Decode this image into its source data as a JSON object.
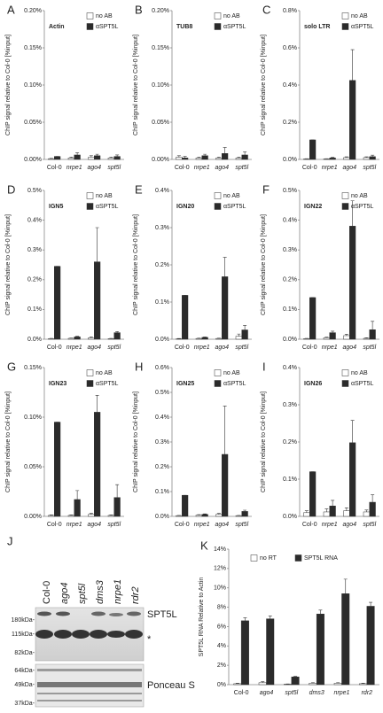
{
  "chart_data": [
    {
      "type": "bar",
      "panel": "A",
      "title": "Actin",
      "y_label": "ChIP signal relative to Col-0 [%input]",
      "categories": [
        "Col-0",
        "nrpe1",
        "ago4",
        "spt5l"
      ],
      "series": [
        {
          "name": "no AB",
          "color": "#ffffff",
          "values": [
            0.001,
            0.002,
            0.003,
            0.002
          ],
          "errors": [
            0.0005,
            0.001,
            0.002,
            0.001
          ]
        },
        {
          "name": "αSPT5L",
          "color": "#2b2b2b",
          "values": [
            0.004,
            0.006,
            0.005,
            0.004
          ],
          "errors": [
            0.0,
            0.003,
            0.002,
            0.002
          ]
        }
      ],
      "ylim": [
        0,
        0.2
      ],
      "yticks": [
        {
          "value": 0,
          "label": "0.00%"
        },
        {
          "value": 0.05,
          "label": "0.05%"
        },
        {
          "value": 0.1,
          "label": "0.10%"
        },
        {
          "value": 0.15,
          "label": "0.15%"
        },
        {
          "value": 0.2,
          "label": "0.20%"
        }
      ],
      "legend": "upper right"
    },
    {
      "type": "bar",
      "panel": "B",
      "title": "TUB8",
      "y_label": "ChIP signal relative to Col-0 [%input]",
      "categories": [
        "Col-0",
        "nrpe1",
        "ago4",
        "spt5l"
      ],
      "series": [
        {
          "name": "no AB",
          "color": "#ffffff",
          "values": [
            0.003,
            0.002,
            0.002,
            0.002
          ],
          "errors": [
            0.002,
            0.001,
            0.001,
            0.001
          ]
        },
        {
          "name": "αSPT5L",
          "color": "#2b2b2b",
          "values": [
            0.002,
            0.005,
            0.008,
            0.006
          ],
          "errors": [
            0.002,
            0.002,
            0.008,
            0.004
          ]
        }
      ],
      "ylim": [
        0,
        0.2
      ],
      "yticks": [
        {
          "value": 0,
          "label": "0.00%"
        },
        {
          "value": 0.05,
          "label": "0.05%"
        },
        {
          "value": 0.1,
          "label": "0.10%"
        },
        {
          "value": 0.15,
          "label": "0.15%"
        },
        {
          "value": 0.2,
          "label": "0.20%"
        }
      ],
      "legend": "upper right"
    },
    {
      "type": "bar",
      "panel": "C",
      "title": "solo LTR",
      "y_label": "ChIP signal relative to Col-0 [%input]",
      "categories": [
        "Col-0",
        "nrpe1",
        "ago4",
        "spt5l"
      ],
      "series": [
        {
          "name": "no AB",
          "color": "#ffffff",
          "values": [
            0.003,
            0.003,
            0.01,
            0.01
          ],
          "errors": [
            0.001,
            0.001,
            0.004,
            0.004
          ]
        },
        {
          "name": "αSPT5L",
          "color": "#2b2b2b",
          "values": [
            0.105,
            0.008,
            0.425,
            0.015
          ],
          "errors": [
            0.0,
            0.003,
            0.165,
            0.008
          ]
        }
      ],
      "ylim": [
        0,
        0.8
      ],
      "yticks": [
        {
          "value": 0,
          "label": "0.0%"
        },
        {
          "value": 0.2,
          "label": "0.2%"
        },
        {
          "value": 0.4,
          "label": "0.4%"
        },
        {
          "value": 0.6,
          "label": "0.6%"
        },
        {
          "value": 0.8,
          "label": "0.8%"
        }
      ],
      "legend": "upper right"
    },
    {
      "type": "bar",
      "panel": "D",
      "title": "IGN5",
      "y_label": "ChIP signal relative to Col-0 [%input]",
      "categories": [
        "Col-0",
        "nrpe1",
        "ago4",
        "spt5l"
      ],
      "series": [
        {
          "name": "no AB",
          "color": "#ffffff",
          "values": [
            0.002,
            0.003,
            0.005,
            0.002
          ],
          "errors": [
            0.001,
            0.001,
            0.003,
            0.001
          ]
        },
        {
          "name": "αSPT5L",
          "color": "#2b2b2b",
          "values": [
            0.245,
            0.008,
            0.26,
            0.022
          ],
          "errors": [
            0.0,
            0.002,
            0.115,
            0.004
          ]
        }
      ],
      "ylim": [
        0,
        0.5
      ],
      "yticks": [
        {
          "value": 0,
          "label": "0.0%"
        },
        {
          "value": 0.1,
          "label": "0.1%"
        },
        {
          "value": 0.2,
          "label": "0.2%"
        },
        {
          "value": 0.3,
          "label": "0.3%"
        },
        {
          "value": 0.4,
          "label": "0.4%"
        },
        {
          "value": 0.5,
          "label": "0.5%"
        }
      ],
      "legend": "upper right"
    },
    {
      "type": "bar",
      "panel": "E",
      "title": "IGN20",
      "y_label": "ChIP signal relative to Col-0 [%input]",
      "categories": [
        "Col-0",
        "nrpe1",
        "ago4",
        "spt5l"
      ],
      "series": [
        {
          "name": "no AB",
          "color": "#ffffff",
          "values": [
            0.001,
            0.002,
            0.002,
            0.008
          ],
          "errors": [
            0.001,
            0.001,
            0.001,
            0.006
          ]
        },
        {
          "name": "αSPT5L",
          "color": "#2b2b2b",
          "values": [
            0.118,
            0.005,
            0.168,
            0.025
          ],
          "errors": [
            0.0,
            0.001,
            0.052,
            0.012
          ]
        }
      ],
      "ylim": [
        0,
        0.4
      ],
      "yticks": [
        {
          "value": 0,
          "label": "0.0%"
        },
        {
          "value": 0.1,
          "label": "0.1%"
        },
        {
          "value": 0.2,
          "label": "0.2%"
        },
        {
          "value": 0.3,
          "label": "0.3%"
        },
        {
          "value": 0.4,
          "label": "0.4%"
        }
      ],
      "legend": "upper right"
    },
    {
      "type": "bar",
      "panel": "F",
      "title": "IGN22",
      "y_label": "ChIP signal relative to Col-0 [%input]",
      "categories": [
        "Col-0",
        "nrpe1",
        "ago4",
        "spt5l"
      ],
      "series": [
        {
          "name": "no AB",
          "color": "#ffffff",
          "values": [
            0.002,
            0.005,
            0.012,
            0.003
          ],
          "errors": [
            0.001,
            0.002,
            0.005,
            0.002
          ]
        },
        {
          "name": "αSPT5L",
          "color": "#2b2b2b",
          "values": [
            0.14,
            0.022,
            0.38,
            0.032
          ],
          "errors": [
            0.0,
            0.005,
            0.085,
            0.028
          ]
        }
      ],
      "ylim": [
        0,
        0.5
      ],
      "yticks": [
        {
          "value": 0,
          "label": "0.0%"
        },
        {
          "value": 0.1,
          "label": "0.1%"
        },
        {
          "value": 0.2,
          "label": "0.2%"
        },
        {
          "value": 0.3,
          "label": "0.3%"
        },
        {
          "value": 0.4,
          "label": "0.4%"
        },
        {
          "value": 0.5,
          "label": "0.5%"
        }
      ],
      "legend": "upper right"
    },
    {
      "type": "bar",
      "panel": "G",
      "title": "IGN23",
      "y_label": "ChIP signal relative to Col-0 [%input]",
      "categories": [
        "Col-0",
        "nrpe1",
        "ago4",
        "spt5l"
      ],
      "series": [
        {
          "name": "no AB",
          "color": "#ffffff",
          "values": [
            0.001,
            0.001,
            0.002,
            0.001
          ],
          "errors": [
            0.0005,
            0.0005,
            0.001,
            0.0005
          ]
        },
        {
          "name": "αSPT5L",
          "color": "#2b2b2b",
          "values": [
            0.095,
            0.017,
            0.105,
            0.019
          ],
          "errors": [
            0.0,
            0.009,
            0.017,
            0.013
          ]
        }
      ],
      "ylim": [
        0,
        0.15
      ],
      "yticks": [
        {
          "value": 0,
          "label": "0.00%"
        },
        {
          "value": 0.05,
          "label": "0.05%"
        },
        {
          "value": 0.1,
          "label": "0.10%"
        },
        {
          "value": 0.15,
          "label": "0.15%"
        }
      ],
      "legend": "upper right"
    },
    {
      "type": "bar",
      "panel": "H",
      "title": "IGN25",
      "y_label": "ChIP signal relative to Col-0 [%input]",
      "categories": [
        "Col-0",
        "nrpe1",
        "ago4",
        "spt5l"
      ],
      "series": [
        {
          "name": "no AB",
          "color": "#ffffff",
          "values": [
            0.003,
            0.005,
            0.008,
            0.003
          ],
          "errors": [
            0.001,
            0.002,
            0.004,
            0.001
          ]
        },
        {
          "name": "αSPT5L",
          "color": "#2b2b2b",
          "values": [
            0.085,
            0.008,
            0.25,
            0.02
          ],
          "errors": [
            0.0,
            0.002,
            0.195,
            0.005
          ]
        }
      ],
      "ylim": [
        0,
        0.6
      ],
      "yticks": [
        {
          "value": 0,
          "label": "0.0%"
        },
        {
          "value": 0.1,
          "label": "0.1%"
        },
        {
          "value": 0.2,
          "label": "0.2%"
        },
        {
          "value": 0.3,
          "label": "0.3%"
        },
        {
          "value": 0.4,
          "label": "0.4%"
        },
        {
          "value": 0.5,
          "label": "0.5%"
        },
        {
          "value": 0.6,
          "label": "0.6%"
        }
      ],
      "legend": "upper right"
    },
    {
      "type": "bar",
      "panel": "I",
      "title": "IGN26",
      "y_label": "ChIP signal relative to Col-0 [%input]",
      "categories": [
        "Col-0",
        "nrpe1",
        "ago4",
        "spt5l"
      ],
      "series": [
        {
          "name": "no AB",
          "color": "#ffffff",
          "values": [
            0.01,
            0.012,
            0.015,
            0.012
          ],
          "errors": [
            0.005,
            0.008,
            0.008,
            0.005
          ]
        },
        {
          "name": "αSPT5L",
          "color": "#2b2b2b",
          "values": [
            0.12,
            0.028,
            0.198,
            0.038
          ],
          "errors": [
            0.0,
            0.015,
            0.06,
            0.02
          ]
        }
      ],
      "ylim": [
        0,
        0.4
      ],
      "yticks": [
        {
          "value": 0,
          "label": "0.0%"
        },
        {
          "value": 0.1,
          "label": "0.1%"
        },
        {
          "value": 0.2,
          "label": "0.2%"
        },
        {
          "value": 0.3,
          "label": "0.3%"
        },
        {
          "value": 0.4,
          "label": "0.4%"
        }
      ],
      "legend": "upper right"
    },
    {
      "type": "bar",
      "panel": "K",
      "y_label": "SPT5L RNA Relative to Actin",
      "categories": [
        "Col-0",
        "ago4",
        "spt5l",
        "dms3",
        "nrpe1",
        "rdr2"
      ],
      "series": [
        {
          "name": "no RT",
          "color": "#ffffff",
          "values": [
            0.1,
            0.2,
            0.05,
            0.15,
            0.15,
            0.1
          ],
          "errors": [
            0.05,
            0.1,
            0.02,
            0.05,
            0.05,
            0.05
          ]
        },
        {
          "name": "SPT5L RNA",
          "color": "#2b2b2b",
          "values": [
            6.6,
            6.8,
            0.8,
            7.3,
            9.4,
            8.1
          ],
          "errors": [
            0.3,
            0.3,
            0.05,
            0.4,
            1.5,
            0.4
          ]
        }
      ],
      "ylim": [
        0,
        14
      ],
      "yticks": [
        {
          "value": 0,
          "label": "0%"
        },
        {
          "value": 2,
          "label": "2%"
        },
        {
          "value": 4,
          "label": "4%"
        },
        {
          "value": 6,
          "label": "6%"
        },
        {
          "value": 8,
          "label": "8%"
        },
        {
          "value": 10,
          "label": "10%"
        },
        {
          "value": 12,
          "label": "12%"
        },
        {
          "value": 14,
          "label": "14%"
        }
      ],
      "legend": "upper center"
    }
  ],
  "blot": {
    "panel": "J",
    "lanes": [
      "Col-0",
      "ago4",
      "spt5l",
      "dms3",
      "nrpe1",
      "rdr2"
    ],
    "markers_top": [
      "180kDa-",
      "115kDa-",
      "82kDa-"
    ],
    "markers_bottom": [
      "64kDa-",
      "49kDa-",
      "37kDa-"
    ],
    "band_label": "SPT5L",
    "star": "*",
    "stain_label": "Ponceau S"
  }
}
